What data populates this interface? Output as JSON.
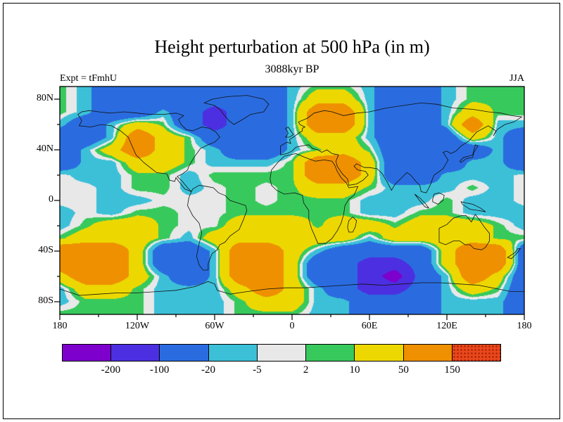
{
  "figure": {
    "title": "Height perturbation at 500 hPa (in m)",
    "subtitle": "3088kyr BP",
    "left_annotation": "Expt = tFmhU",
    "right_annotation": "JJA"
  },
  "axes": {
    "lat_ticks": [
      {
        "label": "80N",
        "lat": 80
      },
      {
        "label": "40N",
        "lat": 40
      },
      {
        "label": "0",
        "lat": 0
      },
      {
        "label": "40S",
        "lat": -40
      },
      {
        "label": "80S",
        "lat": -80
      }
    ],
    "lon_ticks": [
      {
        "label": "180",
        "lon": -180
      },
      {
        "label": "120W",
        "lon": -120
      },
      {
        "label": "60W",
        "lon": -60
      },
      {
        "label": "0",
        "lon": 0
      },
      {
        "label": "60E",
        "lon": 60
      },
      {
        "label": "120E",
        "lon": 120
      },
      {
        "label": "180",
        "lon": 180
      }
    ]
  },
  "colorbar": {
    "labels": [
      "-200",
      "-100",
      "-20",
      "-5",
      "2",
      "10",
      "50",
      "150"
    ],
    "colors": [
      "#7d00cd",
      "#4c2fe0",
      "#2a6ce0",
      "#3cc0d8",
      "#e8e8e8",
      "#38c95c",
      "#ecd800",
      "#ef9000",
      "#e8481c"
    ],
    "last_cell_stipple": true
  },
  "chart_data": {
    "type": "heatmap",
    "title": "Height perturbation at 500 hPa (in m)",
    "subtitle": "3088kyr BP",
    "experiment": "tFmhU",
    "season": "JJA",
    "units": "m",
    "levels": [
      -200,
      -100,
      -20,
      -5,
      2,
      10,
      50,
      150
    ],
    "legend_position": "bottom",
    "lon": [
      -180,
      -160,
      -140,
      -120,
      -100,
      -80,
      -60,
      -40,
      -20,
      0,
      20,
      40,
      60,
      80,
      100,
      120,
      140,
      160,
      180
    ],
    "lat": [
      90,
      80,
      70,
      60,
      50,
      40,
      30,
      20,
      10,
      0,
      -10,
      -20,
      -30,
      -40,
      -50,
      -60,
      -70,
      -80,
      -90
    ],
    "values": [
      [
        6,
        -11,
        -55,
        -55,
        -55,
        -55,
        -55,
        -55,
        -55,
        -11,
        6,
        6,
        -11,
        -55,
        -55,
        -11,
        6,
        6,
        6
      ],
      [
        6,
        -11,
        -55,
        -55,
        -55,
        -55,
        -55,
        -55,
        -55,
        -11,
        28,
        28,
        -11,
        -55,
        -55,
        -11,
        6,
        6,
        6
      ],
      [
        6,
        -11,
        -55,
        -55,
        -11,
        -55,
        -140,
        -55,
        -55,
        -11,
        95,
        95,
        -11,
        -55,
        -55,
        -11,
        28,
        6,
        6
      ],
      [
        -11,
        -55,
        -11,
        28,
        6,
        -55,
        -140,
        -55,
        -55,
        -11,
        95,
        95,
        -11,
        -55,
        -55,
        -11,
        95,
        -11,
        -11
      ],
      [
        -55,
        -55,
        -11,
        95,
        28,
        6,
        -55,
        -55,
        -55,
        -11,
        28,
        28,
        -11,
        -55,
        -55,
        -55,
        28,
        -11,
        -55
      ],
      [
        -55,
        -11,
        28,
        95,
        28,
        6,
        -11,
        -55,
        -55,
        -11,
        6,
        28,
        6,
        -55,
        -55,
        -55,
        -55,
        -11,
        -55
      ],
      [
        -55,
        -11,
        -11,
        28,
        28,
        6,
        -11,
        -11,
        -11,
        6,
        95,
        95,
        28,
        -55,
        -55,
        -55,
        -11,
        -11,
        -55
      ],
      [
        -1,
        -11,
        -11,
        6,
        6,
        -11,
        6,
        6,
        6,
        6,
        95,
        95,
        28,
        -55,
        -55,
        -11,
        -11,
        -11,
        -1
      ],
      [
        -1,
        -1,
        -11,
        6,
        6,
        -11,
        -1,
        6,
        -1,
        6,
        28,
        28,
        6,
        -11,
        -11,
        -11,
        6,
        -11,
        -1
      ],
      [
        -1,
        -1,
        -11,
        -11,
        -1,
        -1,
        -1,
        6,
        -1,
        6,
        6,
        6,
        -11,
        -11,
        -11,
        6,
        -11,
        -11,
        -1
      ],
      [
        -11,
        -1,
        -11,
        6,
        6,
        -1,
        -1,
        6,
        6,
        6,
        6,
        6,
        -11,
        -11,
        6,
        6,
        -11,
        -11,
        -11
      ],
      [
        -11,
        6,
        28,
        28,
        6,
        -1,
        -1,
        28,
        28,
        28,
        6,
        28,
        28,
        6,
        28,
        28,
        28,
        6,
        -11
      ],
      [
        6,
        28,
        28,
        28,
        6,
        -11,
        28,
        28,
        28,
        28,
        28,
        28,
        -11,
        28,
        28,
        28,
        28,
        6,
        6
      ],
      [
        95,
        95,
        95,
        28,
        -55,
        -55,
        -11,
        95,
        95,
        28,
        -11,
        -55,
        -55,
        -55,
        -55,
        28,
        95,
        95,
        -55
      ],
      [
        95,
        95,
        95,
        28,
        -55,
        -55,
        -11,
        95,
        95,
        28,
        -55,
        -55,
        -140,
        -140,
        -55,
        28,
        95,
        95,
        -55
      ],
      [
        28,
        95,
        95,
        28,
        -11,
        -55,
        -11,
        95,
        95,
        28,
        -55,
        -55,
        -140,
        -260,
        -55,
        -11,
        95,
        28,
        -55
      ],
      [
        -11,
        28,
        28,
        6,
        -11,
        -11,
        -11,
        28,
        95,
        28,
        -11,
        -55,
        -140,
        -140,
        -55,
        -11,
        28,
        6,
        -55
      ],
      [
        -11,
        6,
        6,
        6,
        -11,
        -11,
        -11,
        6,
        28,
        28,
        -11,
        -11,
        -55,
        -55,
        -55,
        -11,
        -11,
        -11,
        -55
      ],
      [
        6,
        6,
        6,
        6,
        -11,
        -11,
        -11,
        6,
        6,
        6,
        -11,
        -11,
        -55,
        -55,
        -55,
        -11,
        -11,
        -11,
        -55
      ]
    ]
  }
}
